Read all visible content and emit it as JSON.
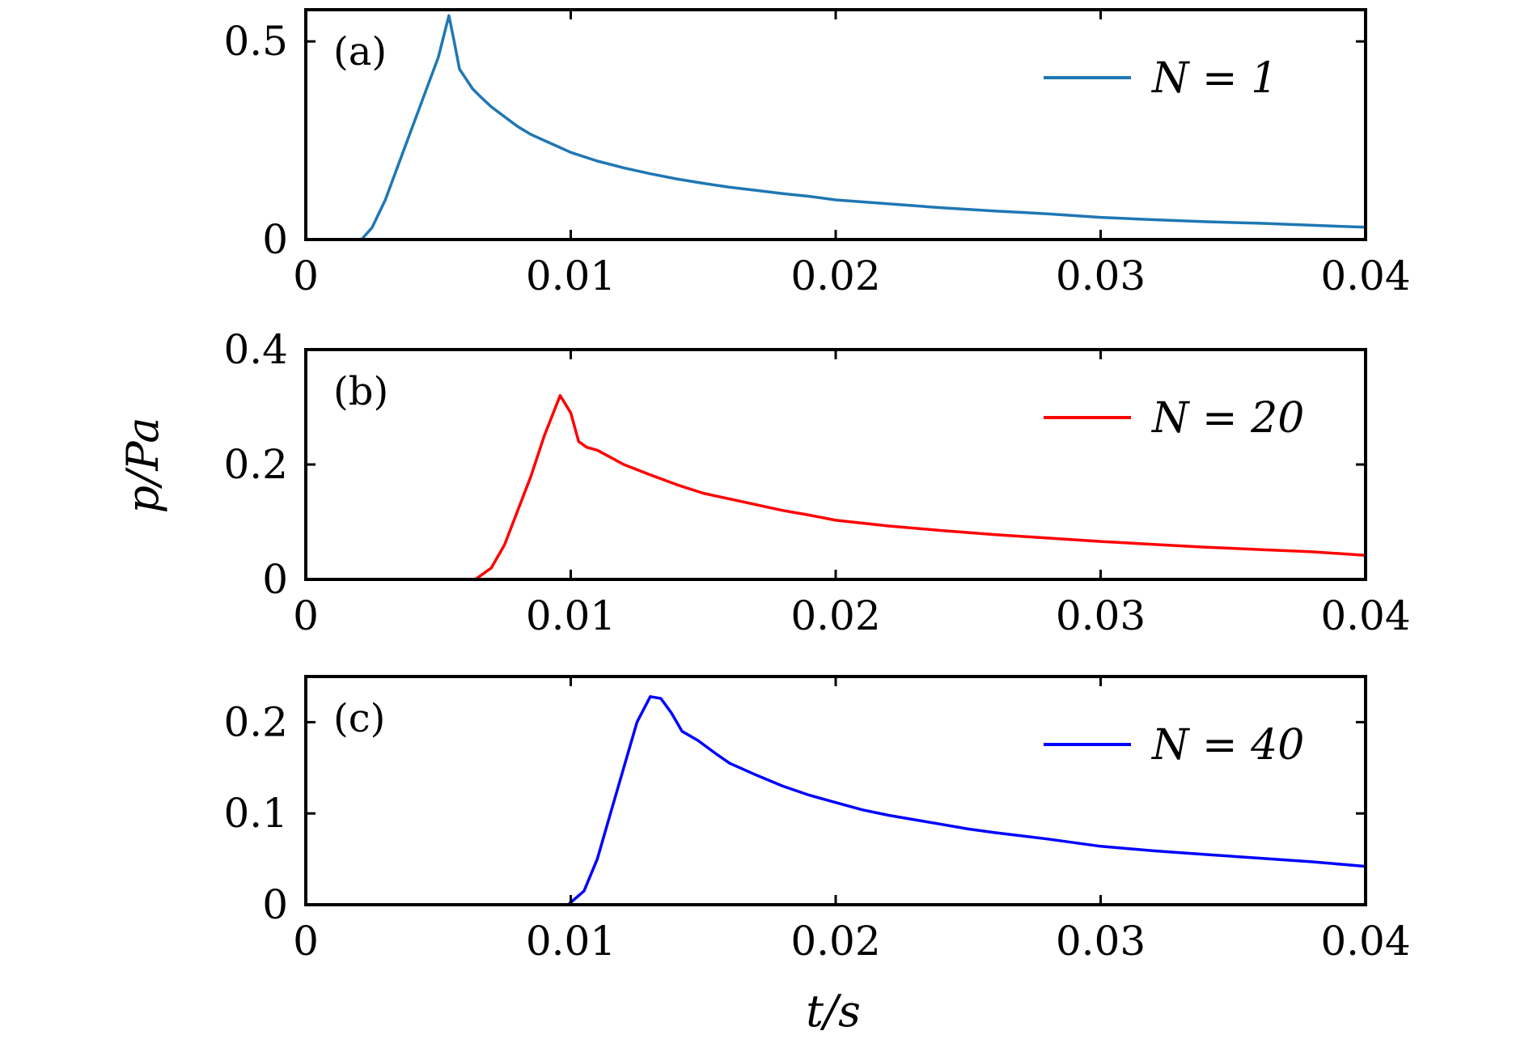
{
  "figure": {
    "ylabel": "p/Pa",
    "xlabel": "t/s"
  },
  "chart_data": [
    {
      "type": "line",
      "panel_label": "(a)",
      "xlim": [
        0,
        0.04
      ],
      "ylim": [
        0,
        0.58
      ],
      "xticks": [
        0,
        0.01,
        0.02,
        0.03,
        0.04
      ],
      "xtick_labels": [
        "0",
        "0.01",
        "0.02",
        "0.03",
        "0.04"
      ],
      "yticks": [
        0,
        0.5
      ],
      "ytick_labels": [
        "0",
        "0.5"
      ],
      "legend_position": "top-right",
      "series": [
        {
          "name": "N = 1",
          "color": "#1f77b4",
          "x": [
            0,
            0.0021,
            0.0025,
            0.003,
            0.0035,
            0.004,
            0.0045,
            0.005,
            0.0054,
            0.0056,
            0.0058,
            0.006,
            0.0063,
            0.0066,
            0.007,
            0.0075,
            0.008,
            0.0085,
            0.009,
            0.0095,
            0.01,
            0.011,
            0.012,
            0.013,
            0.014,
            0.015,
            0.016,
            0.017,
            0.018,
            0.019,
            0.02,
            0.022,
            0.024,
            0.026,
            0.028,
            0.03,
            0.032,
            0.034,
            0.036,
            0.038,
            0.04
          ],
          "y": [
            0,
            0,
            0.03,
            0.1,
            0.19,
            0.28,
            0.37,
            0.46,
            0.565,
            0.5,
            0.43,
            0.41,
            0.38,
            0.36,
            0.335,
            0.31,
            0.285,
            0.265,
            0.25,
            0.235,
            0.22,
            0.198,
            0.181,
            0.166,
            0.153,
            0.142,
            0.132,
            0.124,
            0.116,
            0.109,
            0.1,
            0.09,
            0.08,
            0.072,
            0.065,
            0.056,
            0.05,
            0.045,
            0.041,
            0.036,
            0.031
          ]
        }
      ]
    },
    {
      "type": "line",
      "panel_label": "(b)",
      "xlim": [
        0,
        0.04
      ],
      "ylim": [
        0,
        0.4
      ],
      "xticks": [
        0,
        0.01,
        0.02,
        0.03,
        0.04
      ],
      "xtick_labels": [
        "0",
        "0.01",
        "0.02",
        "0.03",
        "0.04"
      ],
      "yticks": [
        0,
        0.2,
        0.4
      ],
      "ytick_labels": [
        "0",
        "0.2",
        "0.4"
      ],
      "legend_position": "top-right",
      "series": [
        {
          "name": "N = 20",
          "color": "#ff0000",
          "x": [
            0,
            0.0064,
            0.007,
            0.0075,
            0.008,
            0.0085,
            0.009,
            0.0096,
            0.01,
            0.0103,
            0.0106,
            0.011,
            0.012,
            0.013,
            0.014,
            0.015,
            0.016,
            0.017,
            0.018,
            0.019,
            0.02,
            0.022,
            0.024,
            0.026,
            0.028,
            0.03,
            0.032,
            0.034,
            0.036,
            0.038,
            0.04
          ],
          "y": [
            0,
            0,
            0.02,
            0.06,
            0.12,
            0.18,
            0.25,
            0.32,
            0.29,
            0.24,
            0.23,
            0.225,
            0.2,
            0.182,
            0.165,
            0.15,
            0.14,
            0.13,
            0.12,
            0.112,
            0.103,
            0.093,
            0.085,
            0.078,
            0.072,
            0.066,
            0.061,
            0.056,
            0.052,
            0.048,
            0.042
          ]
        }
      ]
    },
    {
      "type": "line",
      "panel_label": "(c)",
      "xlim": [
        0,
        0.04
      ],
      "ylim": [
        0,
        0.25
      ],
      "xticks": [
        0,
        0.01,
        0.02,
        0.03,
        0.04
      ],
      "xtick_labels": [
        "0",
        "0.01",
        "0.02",
        "0.03",
        "0.04"
      ],
      "yticks": [
        0,
        0.1,
        0.2
      ],
      "ytick_labels": [
        "0",
        "0.1",
        "0.2"
      ],
      "legend_position": "top-right",
      "series": [
        {
          "name": "N = 40",
          "color": "#0000ff",
          "x": [
            0,
            0.0099,
            0.0105,
            0.011,
            0.0115,
            0.012,
            0.0125,
            0.013,
            0.0134,
            0.0138,
            0.0142,
            0.0148,
            0.0155,
            0.016,
            0.017,
            0.018,
            0.019,
            0.02,
            0.021,
            0.022,
            0.023,
            0.024,
            0.025,
            0.026,
            0.028,
            0.03,
            0.032,
            0.034,
            0.036,
            0.038,
            0.04
          ],
          "y": [
            0,
            0,
            0.015,
            0.05,
            0.1,
            0.15,
            0.2,
            0.228,
            0.226,
            0.21,
            0.19,
            0.18,
            0.165,
            0.155,
            0.142,
            0.13,
            0.12,
            0.112,
            0.104,
            0.098,
            0.093,
            0.088,
            0.083,
            0.079,
            0.072,
            0.064,
            0.059,
            0.055,
            0.051,
            0.047,
            0.042
          ]
        }
      ]
    }
  ]
}
